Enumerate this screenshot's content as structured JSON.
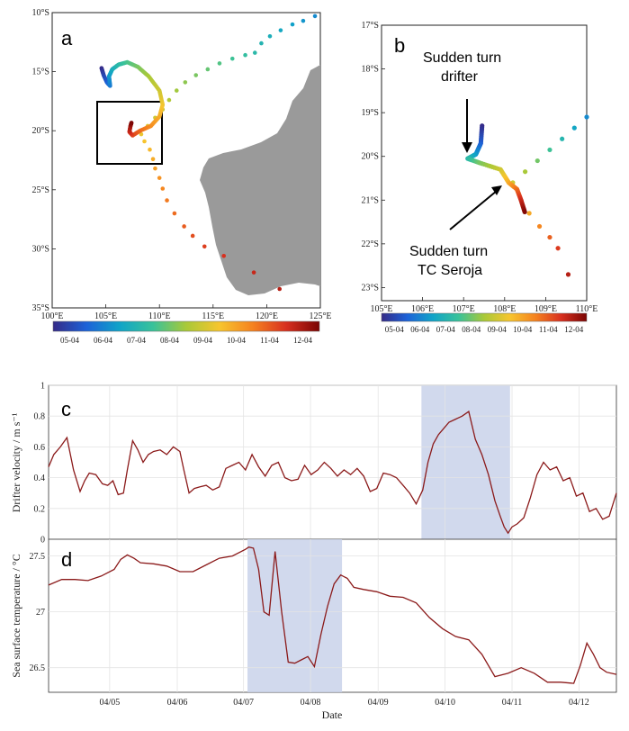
{
  "colors": {
    "land": "#9a9a9a",
    "sea": "#ffffff",
    "line": "#8b1a1a",
    "shade": "#c9d2ea",
    "grid": "#e4e4e4",
    "colormap": [
      "#352a87",
      "#1c62d8",
      "#10a4c8",
      "#39c29a",
      "#a9c938",
      "#f7c52e",
      "#f5821f",
      "#d8301f",
      "#7a0403"
    ]
  },
  "panels": {
    "a": {
      "letter": "a",
      "lat_labels": [
        "10°S",
        "15°S",
        "20°S",
        "25°S",
        "30°S",
        "35°S"
      ],
      "lon_labels": [
        "100°E",
        "105°E",
        "110°E",
        "115°E",
        "120°E",
        "125°E"
      ],
      "lat_range": [
        -35,
        -10
      ],
      "lon_range": [
        100,
        125
      ],
      "inset_box": {
        "lon": [
          105,
          110
        ],
        "lat": [
          -23,
          -18
        ]
      },
      "colorbar_labels": [
        "05-04",
        "06-04",
        "07-04",
        "08-04",
        "09-04",
        "10-04",
        "11-04",
        "12-04"
      ]
    },
    "b": {
      "letter": "b",
      "lat_labels": [
        "17°S",
        "18°S",
        "19°S",
        "20°S",
        "21°S",
        "22°S",
        "23°S"
      ],
      "lon_labels": [
        "105°E",
        "106°E",
        "107°E",
        "108°E",
        "109°E",
        "110°E"
      ],
      "lat_range": [
        -23.3,
        -17
      ],
      "lon_range": [
        105,
        110
      ],
      "annotation_drifter": [
        "Sudden turn",
        "drifter"
      ],
      "annotation_tc": [
        "Sudden turn",
        "TC Seroja"
      ],
      "colorbar_labels": [
        "05-04",
        "06-04",
        "07-04",
        "08-04",
        "09-04",
        "10-04",
        "11-04",
        "12-04"
      ]
    },
    "c": {
      "letter": "c"
    },
    "d": {
      "letter": "d"
    }
  },
  "chart_data": [
    {
      "type": "scatter",
      "panel": "a",
      "description_series": "drifter and TC tracks colored by date",
      "drifter_track": [
        [
          104.6,
          -14.7
        ],
        [
          104.8,
          -15.3
        ],
        [
          105.1,
          -15.9
        ],
        [
          105.4,
          -16.2
        ],
        [
          105.3,
          -15.4
        ],
        [
          105.6,
          -14.8
        ],
        [
          106.2,
          -14.4
        ],
        [
          107.0,
          -14.2
        ],
        [
          108.0,
          -14.6
        ],
        [
          109.0,
          -15.4
        ],
        [
          110.0,
          -16.6
        ],
        [
          110.3,
          -17.8
        ],
        [
          110.0,
          -18.8
        ],
        [
          109.2,
          -19.6
        ],
        [
          108.2,
          -20.0
        ],
        [
          107.5,
          -20.4
        ],
        [
          107.2,
          -20.1
        ],
        [
          107.3,
          -19.6
        ],
        [
          107.4,
          -19.3
        ]
      ],
      "tc_track": [
        [
          124.5,
          -10.3
        ],
        [
          123.4,
          -10.7
        ],
        [
          122.4,
          -11.0
        ],
        [
          121.3,
          -11.5
        ],
        [
          120.3,
          -12.0
        ],
        [
          119.5,
          -12.6
        ],
        [
          118.9,
          -13.4
        ],
        [
          118.0,
          -13.6
        ],
        [
          116.8,
          -13.9
        ],
        [
          115.6,
          -14.3
        ],
        [
          114.5,
          -14.8
        ],
        [
          113.4,
          -15.3
        ],
        [
          112.4,
          -15.9
        ],
        [
          111.6,
          -16.6
        ],
        [
          110.9,
          -17.4
        ],
        [
          110.3,
          -18.2
        ],
        [
          109.6,
          -18.9
        ],
        [
          108.9,
          -19.6
        ],
        [
          108.3,
          -20.3
        ],
        [
          108.6,
          -20.9
        ],
        [
          109.1,
          -21.6
        ],
        [
          109.4,
          -22.4
        ],
        [
          109.6,
          -23.2
        ],
        [
          110.0,
          -24.0
        ],
        [
          110.3,
          -24.9
        ],
        [
          110.7,
          -25.9
        ],
        [
          111.4,
          -27.0
        ],
        [
          112.3,
          -28.1
        ],
        [
          113.1,
          -28.9
        ],
        [
          114.2,
          -29.8
        ],
        [
          116.0,
          -30.6
        ],
        [
          118.8,
          -32.0
        ],
        [
          121.2,
          -33.4
        ]
      ]
    },
    {
      "type": "scatter",
      "panel": "b",
      "drifter_track": [
        [
          107.45,
          -19.3
        ],
        [
          107.42,
          -19.7
        ],
        [
          107.3,
          -19.95
        ],
        [
          107.1,
          -20.05
        ],
        [
          107.4,
          -20.15
        ],
        [
          107.9,
          -20.3
        ],
        [
          108.1,
          -20.6
        ],
        [
          108.3,
          -20.75
        ],
        [
          108.4,
          -21.0
        ],
        [
          108.5,
          -21.3
        ]
      ],
      "tc_track": [
        [
          110.0,
          -19.1
        ],
        [
          109.7,
          -19.35
        ],
        [
          109.4,
          -19.6
        ],
        [
          109.1,
          -19.85
        ],
        [
          108.8,
          -20.1
        ],
        [
          108.5,
          -20.35
        ],
        [
          108.2,
          -20.6
        ],
        [
          108.4,
          -21.0
        ],
        [
          108.6,
          -21.3
        ],
        [
          108.85,
          -21.6
        ],
        [
          109.1,
          -21.85
        ],
        [
          109.3,
          -22.1
        ],
        [
          109.55,
          -22.7
        ]
      ]
    },
    {
      "type": "line",
      "panel": "c",
      "ylabel": "Drifter velocity / m s⁻¹",
      "ylim": [
        0,
        1
      ],
      "yticks": [
        "0",
        "0.2",
        "0.4",
        "0.6",
        "0.8",
        "1"
      ],
      "xlim": [
        0,
        8.65
      ],
      "shaded_interval": [
        5.68,
        7.03
      ],
      "x": [
        0,
        0.08,
        0.18,
        0.28,
        0.38,
        0.48,
        0.55,
        0.62,
        0.72,
        0.82,
        0.9,
        0.98,
        1.06,
        1.14,
        1.2,
        1.28,
        1.36,
        1.44,
        1.52,
        1.6,
        1.7,
        1.8,
        1.9,
        2.0,
        2.06,
        2.14,
        2.22,
        2.3,
        2.4,
        2.5,
        2.6,
        2.7,
        2.8,
        2.9,
        3.0,
        3.1,
        3.2,
        3.3,
        3.4,
        3.5,
        3.6,
        3.7,
        3.8,
        3.9,
        4.0,
        4.1,
        4.2,
        4.3,
        4.4,
        4.5,
        4.6,
        4.7,
        4.8,
        4.9,
        5.0,
        5.1,
        5.2,
        5.3,
        5.4,
        5.5,
        5.6,
        5.7,
        5.78,
        5.86,
        5.94,
        6.02,
        6.1,
        6.2,
        6.3,
        6.4,
        6.5,
        6.6,
        6.7,
        6.8,
        6.88,
        6.94,
        7.0,
        7.06,
        7.14,
        7.24,
        7.34,
        7.44,
        7.54,
        7.64,
        7.74,
        7.84,
        7.94,
        8.04,
        8.14,
        8.24,
        8.34,
        8.44,
        8.54,
        8.65
      ],
      "y": [
        0.47,
        0.55,
        0.6,
        0.66,
        0.45,
        0.31,
        0.38,
        0.43,
        0.42,
        0.36,
        0.35,
        0.38,
        0.29,
        0.3,
        0.45,
        0.64,
        0.58,
        0.5,
        0.55,
        0.57,
        0.58,
        0.55,
        0.6,
        0.57,
        0.45,
        0.3,
        0.33,
        0.34,
        0.35,
        0.32,
        0.34,
        0.46,
        0.48,
        0.5,
        0.45,
        0.55,
        0.47,
        0.41,
        0.48,
        0.5,
        0.4,
        0.38,
        0.39,
        0.48,
        0.42,
        0.45,
        0.5,
        0.46,
        0.41,
        0.45,
        0.42,
        0.46,
        0.41,
        0.31,
        0.33,
        0.43,
        0.42,
        0.4,
        0.35,
        0.3,
        0.23,
        0.32,
        0.5,
        0.62,
        0.68,
        0.72,
        0.76,
        0.78,
        0.8,
        0.83,
        0.65,
        0.55,
        0.42,
        0.25,
        0.15,
        0.08,
        0.04,
        0.08,
        0.1,
        0.14,
        0.27,
        0.42,
        0.5,
        0.45,
        0.47,
        0.38,
        0.4,
        0.28,
        0.3,
        0.18,
        0.2,
        0.13,
        0.15,
        0.3
      ]
    },
    {
      "type": "line",
      "panel": "d",
      "ylabel": "Sea surface temperature / °C",
      "xlabel": "Date",
      "ylim": [
        26.28,
        27.65
      ],
      "yticks": [
        "26.5",
        "27",
        "27.5"
      ],
      "xlim": [
        0,
        8.65
      ],
      "shaded_interval": [
        3.03,
        4.47
      ],
      "categories": [
        "04/05",
        "04/06",
        "04/07",
        "04/08",
        "04/09",
        "04/10",
        "04/11",
        "04/12"
      ],
      "category_x": [
        0.93,
        1.96,
        2.97,
        3.99,
        5.02,
        6.04,
        7.06,
        8.08
      ],
      "x": [
        0,
        0.2,
        0.4,
        0.6,
        0.8,
        1.0,
        1.1,
        1.2,
        1.3,
        1.4,
        1.6,
        1.8,
        2.0,
        2.2,
        2.4,
        2.6,
        2.8,
        3.0,
        3.05,
        3.12,
        3.2,
        3.28,
        3.36,
        3.45,
        3.55,
        3.65,
        3.75,
        3.85,
        3.95,
        4.05,
        4.15,
        4.25,
        4.35,
        4.45,
        4.55,
        4.65,
        4.8,
        5.0,
        5.2,
        5.4,
        5.6,
        5.8,
        6.0,
        6.2,
        6.4,
        6.6,
        6.8,
        7.0,
        7.2,
        7.4,
        7.6,
        7.8,
        8.0,
        8.1,
        8.2,
        8.3,
        8.4,
        8.5,
        8.65
      ],
      "y": [
        27.24,
        27.29,
        27.29,
        27.28,
        27.32,
        27.38,
        27.47,
        27.51,
        27.48,
        27.44,
        27.43,
        27.41,
        27.36,
        27.36,
        27.42,
        27.48,
        27.5,
        27.56,
        27.58,
        27.57,
        27.38,
        27.0,
        26.97,
        27.54,
        27.0,
        26.55,
        26.54,
        26.57,
        26.6,
        26.51,
        26.8,
        27.05,
        27.25,
        27.33,
        27.3,
        27.22,
        27.2,
        27.18,
        27.14,
        27.13,
        27.08,
        26.95,
        26.85,
        26.78,
        26.75,
        26.62,
        26.42,
        26.45,
        26.5,
        26.45,
        26.37,
        26.37,
        26.36,
        26.52,
        26.72,
        26.62,
        26.5,
        26.46,
        26.44
      ]
    }
  ]
}
